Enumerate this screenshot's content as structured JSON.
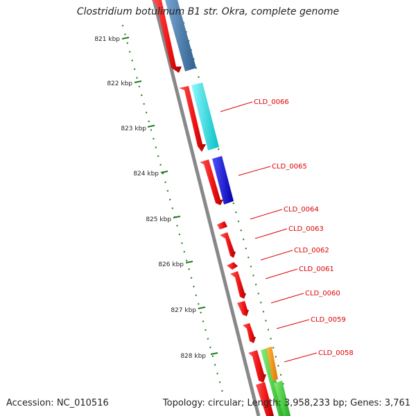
{
  "title": "Clostridium botulinum B1 str. Okra, complete genome",
  "footer": {
    "accession": "Accession: NC_010516",
    "summary": "Topology: circular; Length: 3,958,233 bp; Genes: 3,761"
  },
  "colors": {
    "backbone": "#888888",
    "tick": "#1a7a1a",
    "label": "#dd0000",
    "cds_forward": "#ee1111",
    "gene_steelblue": "#4a7fb0",
    "gene_cyan": "#11e0e8",
    "gene_blue": "#1010ee",
    "gene_green": "#44cc33",
    "gene_orange": "#ff9900"
  },
  "ruler": {
    "major_ticks": [
      "821 kbp",
      "822 kbp",
      "823 kbp",
      "824 kbp",
      "825 kbp",
      "826 kbp",
      "827 kbp",
      "828 kbp"
    ]
  },
  "gene_labels": [
    "CLD_0066",
    "CLD_0065",
    "CLD_0064",
    "CLD_0063",
    "CLD_0062",
    "CLD_0061",
    "CLD_0060",
    "CLD_0059",
    "CLD_0058"
  ]
}
